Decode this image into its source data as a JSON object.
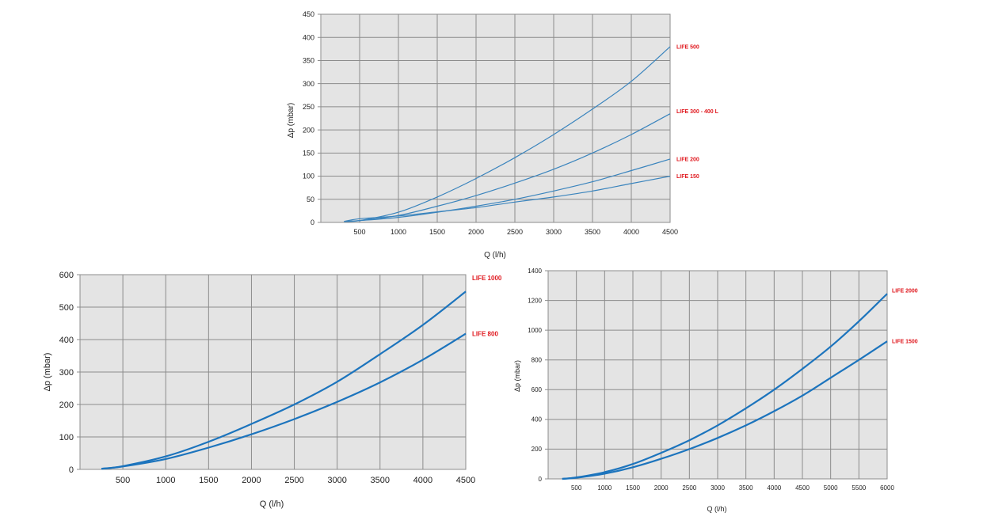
{
  "chart_data": [
    {
      "type": "line",
      "xlabel": "Q (l/h)",
      "ylabel": "Δp (mbar)",
      "xlim": [
        0,
        4500
      ],
      "ylim": [
        0,
        450
      ],
      "xticks": [
        500,
        1000,
        1500,
        2000,
        2500,
        3000,
        3500,
        4000,
        4500
      ],
      "yticks": [
        0,
        50,
        100,
        150,
        200,
        250,
        300,
        350,
        400,
        450
      ],
      "grid": true,
      "colors": {
        "line": "#3a84bd",
        "label": "#e0191f",
        "plot_bg": "#e4e4e4",
        "grid": "#8c8c8c"
      },
      "series": [
        {
          "name": "LIFE 500",
          "x": [
            300,
            500,
            1000,
            1500,
            2000,
            2500,
            3000,
            3500,
            4000,
            4500
          ],
          "values": [
            2,
            4,
            22,
            55,
            95,
            140,
            190,
            245,
            305,
            380
          ]
        },
        {
          "name": "LIFE 300 - 400 L",
          "x": [
            300,
            500,
            1000,
            1500,
            2000,
            2500,
            3000,
            3500,
            4000,
            4500
          ],
          "values": [
            2,
            4,
            15,
            35,
            58,
            85,
            115,
            150,
            190,
            235
          ]
        },
        {
          "name": "LIFE 200",
          "x": [
            300,
            500,
            1000,
            1500,
            2000,
            2500,
            3000,
            3500,
            4000,
            4500
          ],
          "values": [
            2,
            4,
            11,
            22,
            35,
            50,
            68,
            88,
            112,
            137
          ]
        },
        {
          "name": "LIFE 150",
          "x": [
            300,
            500,
            1000,
            1500,
            2000,
            2500,
            3000,
            3500,
            4000,
            4500
          ],
          "values": [
            2,
            8,
            14,
            23,
            32,
            44,
            55,
            68,
            84,
            100
          ]
        }
      ]
    },
    {
      "type": "line",
      "xlabel": "Q (l/h)",
      "ylabel": "Δp (mbar)",
      "xlim": [
        0,
        4500
      ],
      "ylim": [
        0,
        600
      ],
      "xticks": [
        500,
        1000,
        1500,
        2000,
        2500,
        3000,
        3500,
        4000,
        4500
      ],
      "yticks": [
        0,
        100,
        200,
        300,
        400,
        500,
        600
      ],
      "grid": true,
      "colors": {
        "line": "#1c74bd",
        "label": "#e0191f",
        "plot_bg": "#e4e4e4",
        "grid": "#8c8c8c"
      },
      "series": [
        {
          "name": "LIFE 1000",
          "x": [
            250,
            500,
            1000,
            1500,
            2000,
            2500,
            3000,
            3500,
            4000,
            4500
          ],
          "values": [
            2,
            10,
            40,
            85,
            140,
            200,
            270,
            355,
            445,
            548
          ]
        },
        {
          "name": "LIFE 800",
          "x": [
            250,
            500,
            1000,
            1500,
            2000,
            2500,
            3000,
            3500,
            4000,
            4500
          ],
          "values": [
            2,
            9,
            32,
            67,
            108,
            155,
            208,
            268,
            338,
            418
          ]
        }
      ]
    },
    {
      "type": "line",
      "xlabel": "Q (l/h)",
      "ylabel": "Δp (mbar)",
      "xlim": [
        0,
        6000
      ],
      "ylim": [
        0,
        1400
      ],
      "xticks": [
        500,
        1000,
        1500,
        2000,
        2500,
        3000,
        3500,
        4000,
        4500,
        5000,
        5500,
        6000
      ],
      "yticks": [
        0,
        200,
        400,
        600,
        800,
        1000,
        1200,
        1400
      ],
      "grid": true,
      "colors": {
        "line": "#1c74bd",
        "label": "#e0191f",
        "plot_bg": "#e4e4e4",
        "grid": "#8c8c8c"
      },
      "series": [
        {
          "name": "LIFE 2000",
          "x": [
            250,
            500,
            1000,
            1500,
            2000,
            2500,
            3000,
            3500,
            4000,
            4500,
            5000,
            5500,
            6000
          ],
          "values": [
            0,
            10,
            45,
            100,
            175,
            260,
            360,
            475,
            600,
            740,
            890,
            1060,
            1245
          ]
        },
        {
          "name": "LIFE 1500",
          "x": [
            250,
            500,
            1000,
            1500,
            2000,
            2500,
            3000,
            3500,
            4000,
            4500,
            5000,
            5500,
            6000
          ],
          "values": [
            0,
            8,
            35,
            78,
            135,
            200,
            275,
            360,
            455,
            560,
            680,
            800,
            925
          ]
        }
      ]
    }
  ]
}
